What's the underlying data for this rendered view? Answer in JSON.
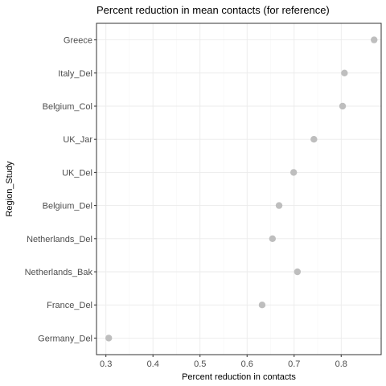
{
  "chart_data": {
    "type": "scatter",
    "title": "Percent reduction in mean contacts (for reference)",
    "xlabel": "Percent reduction in contacts",
    "ylabel": "Region_Study",
    "xlim": [
      0.28,
      0.885
    ],
    "x_ticks": [
      0.3,
      0.4,
      0.5,
      0.6,
      0.7,
      0.8
    ],
    "x_tick_labels": [
      "0.3",
      "0.4",
      "0.5",
      "0.6",
      "0.7",
      "0.8"
    ],
    "categories": [
      "Greece",
      "Italy_Del",
      "Belgium_Col",
      "UK_Jar",
      "UK_Del",
      "Belgium_Del",
      "Netherlands_Del",
      "Netherlands_Bak",
      "France_Del",
      "Germany_Del"
    ],
    "values": [
      0.87,
      0.807,
      0.803,
      0.742,
      0.699,
      0.668,
      0.654,
      0.707,
      0.632,
      0.306
    ],
    "grid": true,
    "legend": "none",
    "point_color": "#bebebe"
  }
}
